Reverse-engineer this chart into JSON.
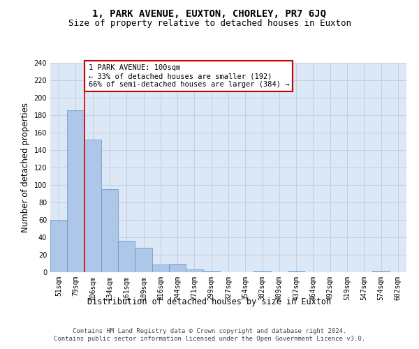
{
  "title": "1, PARK AVENUE, EUXTON, CHORLEY, PR7 6JQ",
  "subtitle": "Size of property relative to detached houses in Euxton",
  "xlabel": "Distribution of detached houses by size in Euxton",
  "ylabel": "Number of detached properties",
  "categories": [
    "51sqm",
    "79sqm",
    "106sqm",
    "134sqm",
    "161sqm",
    "189sqm",
    "216sqm",
    "244sqm",
    "271sqm",
    "299sqm",
    "327sqm",
    "354sqm",
    "382sqm",
    "409sqm",
    "437sqm",
    "464sqm",
    "492sqm",
    "519sqm",
    "547sqm",
    "574sqm",
    "602sqm"
  ],
  "values": [
    60,
    186,
    152,
    95,
    36,
    28,
    9,
    10,
    3,
    2,
    0,
    0,
    2,
    0,
    2,
    0,
    0,
    0,
    0,
    2,
    0
  ],
  "bar_color": "#aec6e8",
  "bar_edge_color": "#5a96c8",
  "background_color": "#ffffff",
  "plot_bg_color": "#dce8f5",
  "grid_color": "#b8cde0",
  "vline_x_idx": 1.5,
  "vline_color": "#cc0000",
  "annotation_text": "1 PARK AVENUE: 100sqm\n← 33% of detached houses are smaller (192)\n66% of semi-detached houses are larger (384) →",
  "annotation_box_color": "#cc0000",
  "ylim": [
    0,
    240
  ],
  "yticks": [
    0,
    20,
    40,
    60,
    80,
    100,
    120,
    140,
    160,
    180,
    200,
    220,
    240
  ],
  "footer": "Contains HM Land Registry data © Crown copyright and database right 2024.\nContains public sector information licensed under the Open Government Licence v3.0.",
  "title_fontsize": 10,
  "subtitle_fontsize": 9,
  "xlabel_fontsize": 8.5,
  "ylabel_fontsize": 8.5,
  "tick_fontsize": 7,
  "annotation_fontsize": 7.5,
  "footer_fontsize": 6.5
}
